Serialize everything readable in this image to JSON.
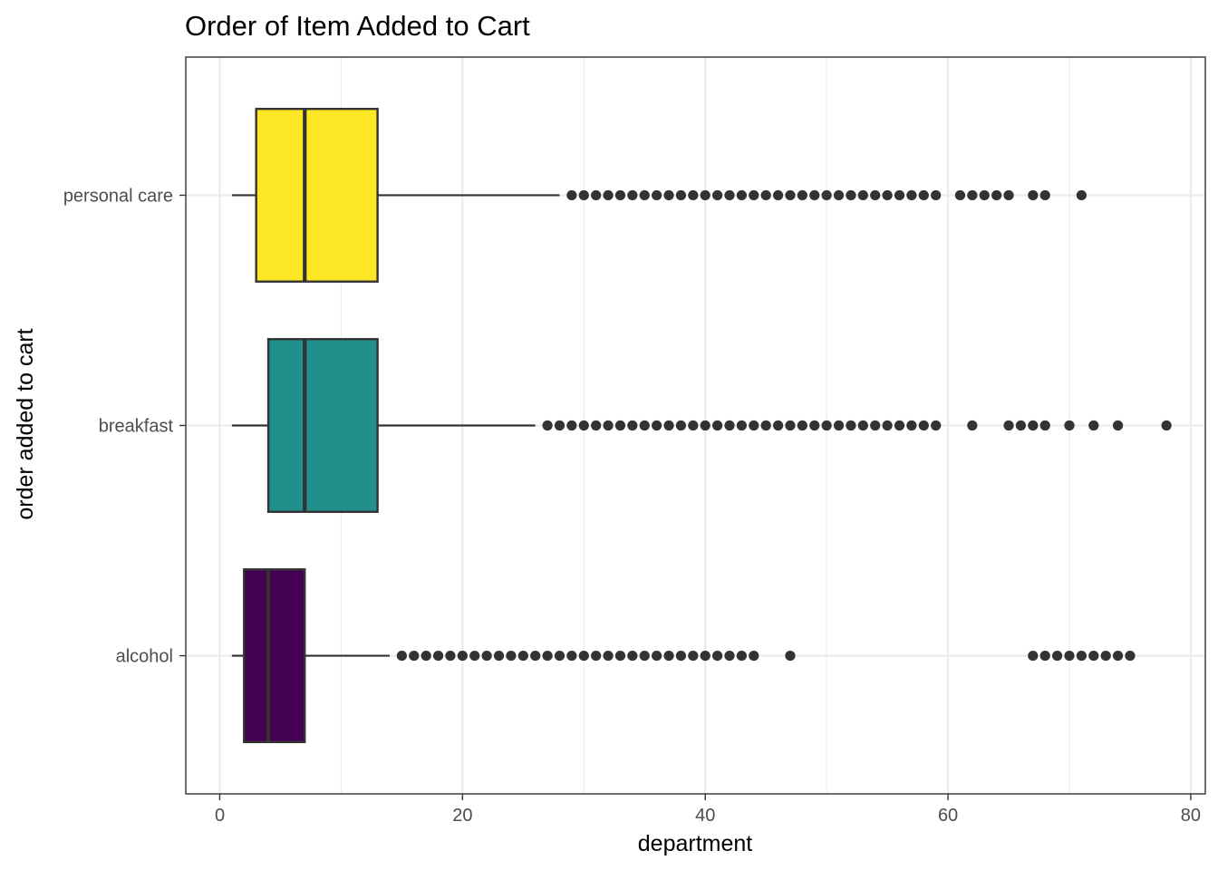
{
  "chart_data": {
    "type": "boxplot",
    "orientation": "horizontal",
    "title": "Order of Item Added to Cart",
    "xlabel": "department",
    "ylabel": "order added to cart",
    "xlim": [
      -2.8,
      81.2
    ],
    "x_ticks": [
      0,
      20,
      40,
      60,
      80
    ],
    "x_tick_labels": [
      "0",
      "20",
      "40",
      "60",
      "80"
    ],
    "grid": true,
    "legend": "none",
    "categories": [
      "alcohol",
      "breakfast",
      "personal care"
    ],
    "series": [
      {
        "category": "alcohol",
        "color": "#440154",
        "whisker_low": 1,
        "q1": 2,
        "median": 4,
        "q3": 7,
        "whisker_high": 14,
        "outliers": [
          15,
          16,
          17,
          18,
          19,
          20,
          21,
          22,
          23,
          24,
          25,
          26,
          27,
          28,
          29,
          30,
          31,
          32,
          33,
          34,
          35,
          36,
          37,
          38,
          39,
          40,
          41,
          42,
          43,
          44,
          47,
          67,
          68,
          69,
          70,
          71,
          72,
          73,
          74,
          75
        ]
      },
      {
        "category": "breakfast",
        "color": "#21908C",
        "whisker_low": 1,
        "q1": 4,
        "median": 7,
        "q3": 13,
        "whisker_high": 26,
        "outliers": [
          27,
          28,
          29,
          30,
          31,
          32,
          33,
          34,
          35,
          36,
          37,
          38,
          39,
          40,
          41,
          42,
          43,
          44,
          45,
          46,
          47,
          48,
          49,
          50,
          51,
          52,
          53,
          54,
          55,
          56,
          57,
          58,
          59,
          62,
          65,
          66,
          67,
          68,
          70,
          72,
          74,
          78
        ]
      },
      {
        "category": "personal care",
        "color": "#FDE725",
        "whisker_low": 1,
        "q1": 3,
        "median": 7,
        "q3": 13,
        "whisker_high": 28,
        "outliers": [
          29,
          30,
          31,
          32,
          33,
          34,
          35,
          36,
          37,
          38,
          39,
          40,
          41,
          42,
          43,
          44,
          45,
          46,
          47,
          48,
          49,
          50,
          51,
          52,
          53,
          54,
          55,
          56,
          57,
          58,
          59,
          61,
          62,
          63,
          64,
          65,
          67,
          68,
          71
        ]
      }
    ]
  }
}
